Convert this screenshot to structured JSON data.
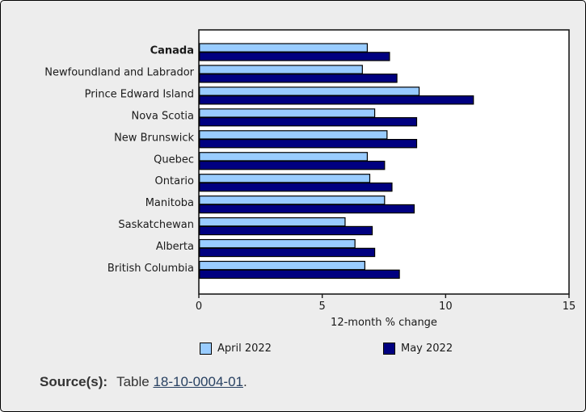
{
  "chart_data": {
    "type": "bar",
    "orientation": "horizontal",
    "title": "",
    "xlabel": "12-month % change",
    "ylabel": "",
    "xlim": [
      0,
      15
    ],
    "xticks": [
      0,
      5,
      10,
      15
    ],
    "grid": false,
    "legend_position": "bottom",
    "categories": [
      "Canada",
      "Newfoundland and Labrador",
      "Prince Edward Island",
      "Nova Scotia",
      "New Brunswick",
      "Quebec",
      "Ontario",
      "Manitoba",
      "Saskatchewan",
      "Alberta",
      "British Columbia"
    ],
    "bold_categories": [
      "Canada"
    ],
    "series": [
      {
        "name": "April 2022",
        "color": "#99CCFF",
        "values": [
          6.8,
          6.6,
          8.9,
          7.1,
          7.6,
          6.8,
          6.9,
          7.5,
          5.9,
          6.3,
          6.7
        ]
      },
      {
        "name": "May 2022",
        "color": "#000080",
        "values": [
          7.7,
          8.0,
          11.1,
          8.8,
          8.8,
          7.5,
          7.8,
          8.7,
          7.0,
          7.1,
          8.1
        ]
      }
    ]
  },
  "source": {
    "label": "Source(s):",
    "table_word": "Table",
    "table_link": "18-10-0004-01",
    "period": "."
  },
  "colors": {
    "background": "#EDEDED",
    "plot_background": "#FFFFFF",
    "plot_border": "#1a1a1a",
    "bar_border": "#000000",
    "text": "#1a1a1a",
    "link": "#284162"
  }
}
